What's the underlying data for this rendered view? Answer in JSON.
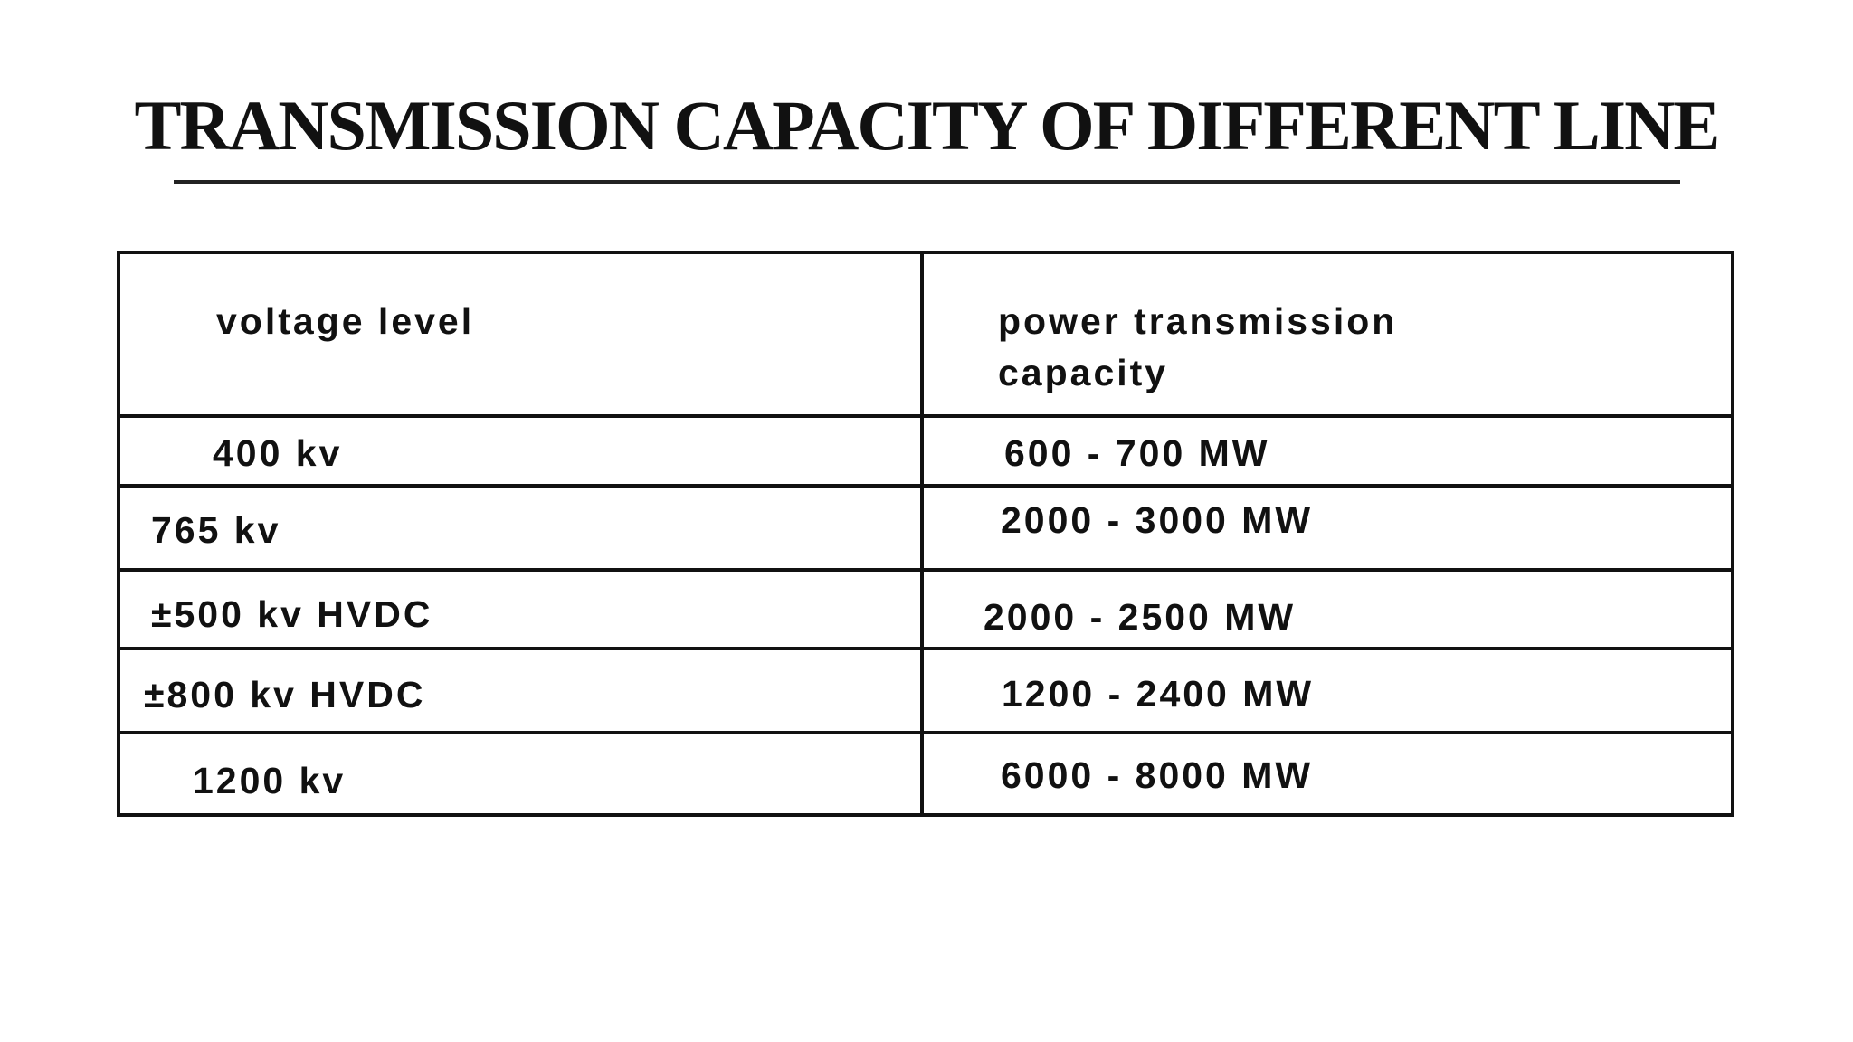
{
  "title": "TRANSMISSION CAPACITY OF DIFFERENT LINE",
  "table": {
    "header": [
      "voltage level",
      "power transmission capacity"
    ],
    "rows": [
      [
        "400 kv",
        "600 - 700 MW"
      ],
      [
        "765 kv",
        "2000 - 3000 MW"
      ],
      [
        "±500 kv HVDC",
        "2000 - 2500 MW"
      ],
      [
        "±800 kv HVDC",
        "1200 - 2400 MW"
      ],
      [
        "1200 kv",
        "6000 - 8000 MW"
      ]
    ]
  }
}
